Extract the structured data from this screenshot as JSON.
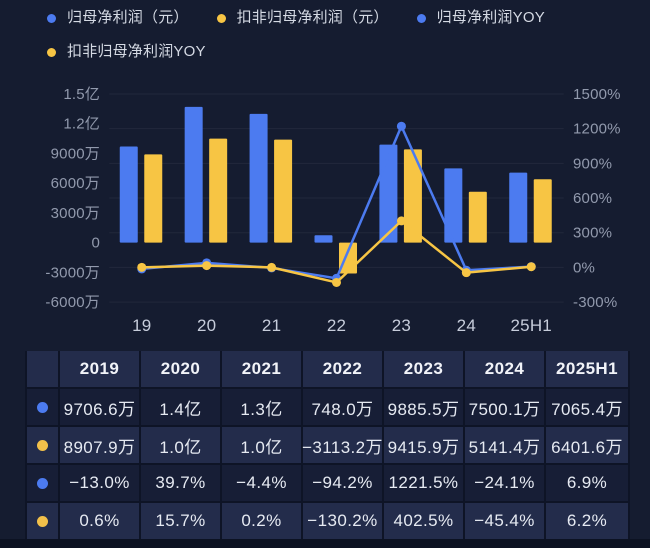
{
  "colors": {
    "background": "#151C30",
    "blue": "#4C7BF0",
    "yellow": "#F7C544",
    "axis_label": "#929AAD",
    "x_label": "#C7CDDB",
    "grid_line": "rgba(255,255,255,0.055)"
  },
  "legend": {
    "items": [
      {
        "label": "归母净利润（元）",
        "marker": "blue"
      },
      {
        "label": "扣非归母净利润（元）",
        "marker": "yellow"
      },
      {
        "label": "归母净利润YOY",
        "marker": "blue"
      },
      {
        "label": "扣非归母净利润YOY",
        "marker": "yellow"
      }
    ]
  },
  "chart_data": {
    "type": "bar+line combo, dual y-axis",
    "categories": [
      "19",
      "20",
      "21",
      "22",
      "23",
      "24",
      "25H1"
    ],
    "left_axis": {
      "unit": "元",
      "tick_labels": [
        "1.5亿",
        "1.2亿",
        "9000万",
        "6000万",
        "3000万",
        "0",
        "-3000万",
        "-6000万"
      ],
      "tick_values_wan": [
        15000,
        12000,
        9000,
        6000,
        3000,
        0,
        -3000,
        -6000
      ],
      "max_wan": 15000,
      "min_wan": -6000
    },
    "right_axis": {
      "unit": "%",
      "tick_labels": [
        "1500%",
        "1200%",
        "900%",
        "600%",
        "300%",
        "0%",
        "-300%"
      ],
      "tick_values_pct": [
        1500,
        1200,
        900,
        600,
        300,
        0,
        -300
      ],
      "max_pct": 1500,
      "min_pct": -300
    },
    "series": [
      {
        "name": "归母净利润（元）",
        "type": "bar",
        "axis": "left",
        "color": "blue",
        "values_wan": [
          9706.6,
          13700,
          13000,
          748.0,
          9885.5,
          7500.1,
          7065.4
        ]
      },
      {
        "name": "扣非归母净利润（元）",
        "type": "bar",
        "axis": "left",
        "color": "yellow",
        "values_wan": [
          8907.9,
          10500,
          10400,
          -3113.2,
          9415.9,
          5141.4,
          6401.6
        ]
      },
      {
        "name": "归母净利润YOY",
        "type": "line",
        "axis": "right",
        "color": "blue",
        "values_pct": [
          -13.0,
          39.7,
          -4.4,
          -94.2,
          1221.5,
          -24.1,
          6.9
        ]
      },
      {
        "name": "扣非归母净利润YOY",
        "type": "line",
        "axis": "right",
        "color": "yellow",
        "values_pct": [
          0.6,
          15.7,
          0.2,
          -130.2,
          402.5,
          -45.4,
          6.2
        ]
      }
    ],
    "legend_position": "top-left",
    "grid": "horizontal lines at right-axis ticks"
  },
  "table": {
    "header": [
      "2019",
      "2020",
      "2021",
      "2022",
      "2023",
      "2024",
      "2025H1"
    ],
    "rows": [
      {
        "marker": "blue",
        "values": [
          "9706.6万",
          "1.4亿",
          "1.3亿",
          "748.0万",
          "9885.5万",
          "7500.1万",
          "7065.4万"
        ]
      },
      {
        "marker": "yellow",
        "values": [
          "8907.9万",
          "1.0亿",
          "1.0亿",
          "−3113.2万",
          "9415.9万",
          "5141.4万",
          "6401.6万"
        ]
      },
      {
        "marker": "blue",
        "values": [
          "−13.0%",
          "39.7%",
          "−4.4%",
          "−94.2%",
          "1221.5%",
          "−24.1%",
          "6.9%"
        ]
      },
      {
        "marker": "yellow",
        "values": [
          "0.6%",
          "15.7%",
          "0.2%",
          "−130.2%",
          "402.5%",
          "−45.4%",
          "6.2%"
        ]
      }
    ]
  }
}
